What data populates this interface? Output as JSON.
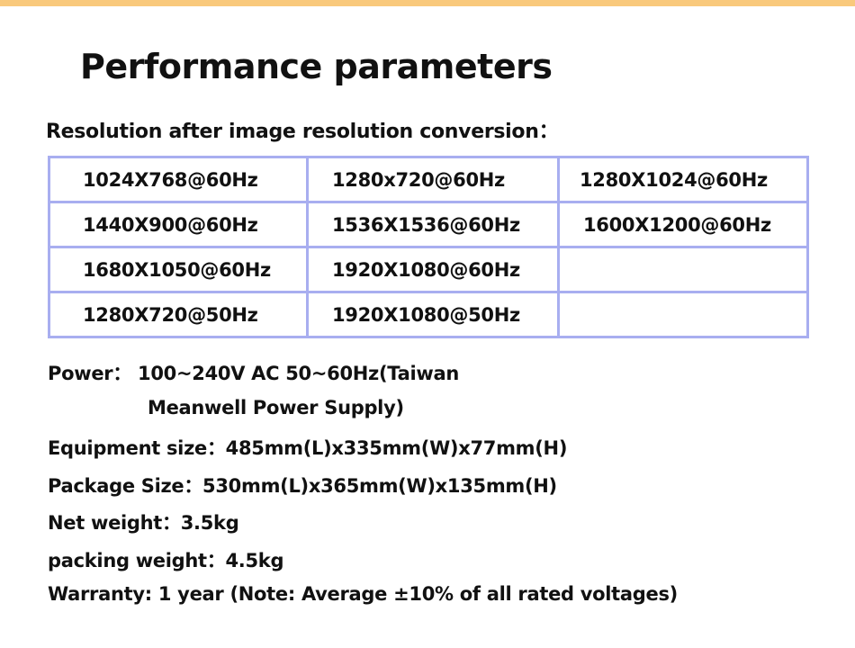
{
  "accent_color": "#f9c97c",
  "table_border_color": "#a8aef0",
  "title": "Performance parameters",
  "subtitle": "Resolution after image resolution conversion：",
  "resolutions": [
    [
      "1024X768@60Hz",
      "1280x720@60Hz",
      "1280X1024@60Hz"
    ],
    [
      "1440X900@60Hz",
      "1536X1536@60Hz",
      "1600X1200@60Hz"
    ],
    [
      "1680X1050@60Hz",
      "1920X1080@60Hz",
      ""
    ],
    [
      "1280X720@50Hz",
      "1920X1080@50Hz",
      ""
    ]
  ],
  "specs": {
    "power_line1": "Power：  100~240V  AC  50~60Hz(Taiwan",
    "power_line2": "Meanwell  Power Supply)",
    "equipment_size": "Equipment size：485mm(L)x335mm(W)x77mm(H)",
    "package_size": "Package Size：530mm(L)x365mm(W)x135mm(H)",
    "net_weight": "Net weight：3.5kg",
    "packing_weight": "packing weight：4.5kg",
    "warranty": "Warranty: 1 year (Note: Average ±10% of all rated voltages)"
  }
}
